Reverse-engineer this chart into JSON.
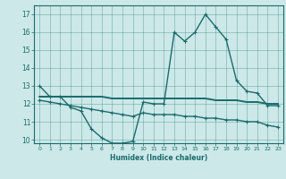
{
  "xlabel": "Humidex (Indice chaleur)",
  "bg_color": "#cce8e8",
  "line_color": "#1a6b6b",
  "xlim": [
    -0.5,
    23.5
  ],
  "ylim": [
    9.8,
    17.5
  ],
  "yticks": [
    10,
    11,
    12,
    13,
    14,
    15,
    16,
    17
  ],
  "xticks": [
    0,
    1,
    2,
    3,
    4,
    5,
    6,
    7,
    8,
    9,
    10,
    11,
    12,
    13,
    14,
    15,
    16,
    17,
    18,
    19,
    20,
    21,
    22,
    23
  ],
  "line1_x": [
    0,
    1,
    2,
    3,
    4,
    5,
    6,
    7,
    8,
    9,
    10,
    11,
    12,
    13,
    14,
    15,
    16,
    17,
    18,
    19,
    20,
    21,
    22,
    23
  ],
  "line1_y": [
    13.0,
    12.4,
    12.4,
    11.8,
    11.6,
    10.6,
    10.1,
    9.8,
    9.8,
    9.9,
    12.1,
    12.0,
    12.0,
    16.0,
    15.5,
    16.0,
    17.0,
    16.3,
    15.6,
    13.3,
    12.7,
    12.6,
    11.9,
    11.9
  ],
  "line2_x": [
    0,
    1,
    2,
    3,
    4,
    5,
    6,
    7,
    8,
    9,
    10,
    11,
    12,
    13,
    14,
    15,
    16,
    17,
    18,
    19,
    20,
    21,
    22,
    23
  ],
  "line2_y": [
    12.4,
    12.4,
    12.4,
    12.4,
    12.4,
    12.4,
    12.4,
    12.3,
    12.3,
    12.3,
    12.3,
    12.3,
    12.3,
    12.3,
    12.3,
    12.3,
    12.3,
    12.2,
    12.2,
    12.2,
    12.1,
    12.1,
    12.0,
    12.0
  ],
  "line3_x": [
    0,
    1,
    2,
    3,
    4,
    5,
    6,
    7,
    8,
    9,
    10,
    11,
    12,
    13,
    14,
    15,
    16,
    17,
    18,
    19,
    20,
    21,
    22,
    23
  ],
  "line3_y": [
    12.2,
    12.1,
    12.0,
    11.9,
    11.8,
    11.7,
    11.6,
    11.5,
    11.4,
    11.3,
    11.5,
    11.4,
    11.4,
    11.4,
    11.3,
    11.3,
    11.2,
    11.2,
    11.1,
    11.1,
    11.0,
    11.0,
    10.8,
    10.7
  ]
}
